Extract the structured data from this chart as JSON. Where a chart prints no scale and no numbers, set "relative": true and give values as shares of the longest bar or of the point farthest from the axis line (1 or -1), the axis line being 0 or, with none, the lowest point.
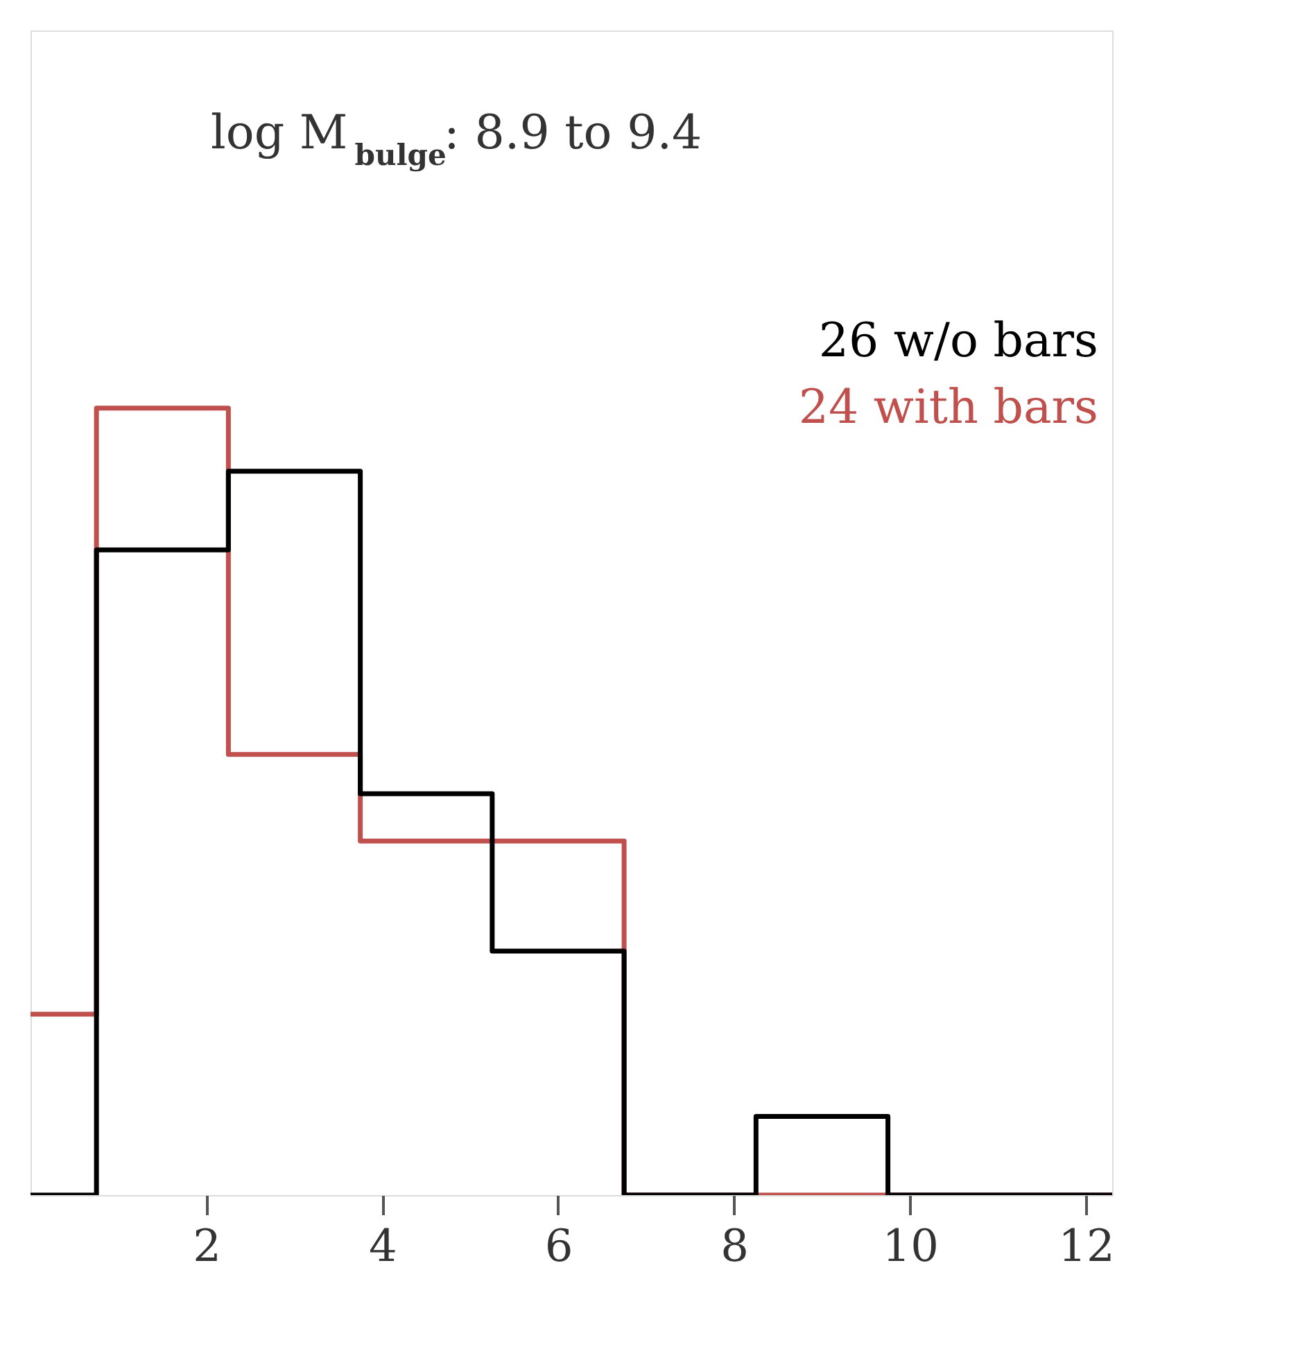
{
  "chart_data": {
    "type": "line",
    "relative": true,
    "series": [
      {
        "name": "24 with bars",
        "color": "#c0504d",
        "x": [
          0,
          0.75,
          0.75,
          2.25,
          2.25,
          3.75,
          3.75,
          6.75,
          6.75,
          12.3
        ],
        "values": [
          0.23,
          0.23,
          1,
          1,
          0.56,
          0.56,
          0.45,
          0.45,
          0,
          0
        ]
      },
      {
        "name": "26 w/o bars",
        "color": "#000000",
        "x": [
          0,
          0.75,
          0.75,
          2.25,
          2.25,
          3.75,
          3.75,
          5.25,
          5.25,
          6.75,
          6.75,
          8.25,
          8.25,
          9.75,
          9.75,
          12.3
        ],
        "values": [
          0,
          0,
          0.82,
          0.82,
          0.92,
          0.92,
          0.51,
          0.51,
          0.31,
          0.31,
          0,
          0,
          0.1,
          0.1,
          0,
          0
        ]
      }
    ],
    "xlim": [
      0,
      12.3
    ],
    "xticks": [
      2,
      4,
      6,
      8,
      10,
      12
    ],
    "annotations": [
      "log M$_{bulge}$:  8.9 to  9.4"
    ],
    "marker": "none",
    "line_style": "solid",
    "grid": false
  }
}
